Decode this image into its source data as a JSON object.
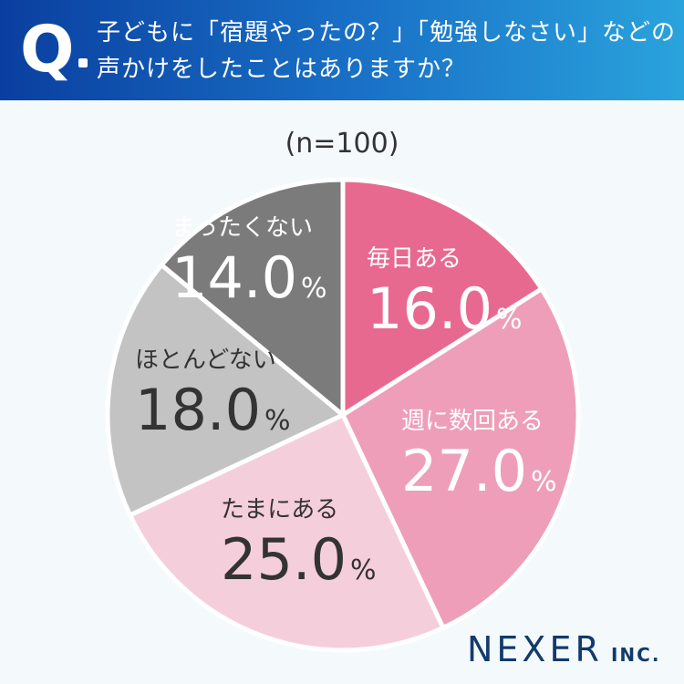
{
  "header": {
    "mark": "Q",
    "line1": "子どもに「宿題やったの？」「勉強しなさい」などの",
    "line2": "声かけをしたことはありますか？"
  },
  "sample_size": "(n=100)",
  "brand": {
    "name": "NEXER",
    "suffix": "INC."
  },
  "chart_data": {
    "type": "pie",
    "start": "12 o'clock",
    "direction": "clockwise",
    "slices": [
      {
        "label": "毎日ある",
        "value": 16.0,
        "display": "16.0",
        "color": "#e8698f",
        "text_color": "#ffffff"
      },
      {
        "label": "週に数回ある",
        "value": 27.0,
        "display": "27.0",
        "color": "#ee9eb8",
        "text_color": "#ffffff"
      },
      {
        "label": "たまにある",
        "value": 25.0,
        "display": "25.0",
        "color": "#f5cedc",
        "text_color": "#333333"
      },
      {
        "label": "ほとんどない",
        "value": 18.0,
        "display": "18.0",
        "color": "#c3c3c3",
        "text_color": "#333333"
      },
      {
        "label": "まったくない",
        "value": 14.0,
        "display": "14.0",
        "color": "#7b7b7b",
        "text_color": "#ffffff"
      }
    ],
    "unit": "%"
  }
}
